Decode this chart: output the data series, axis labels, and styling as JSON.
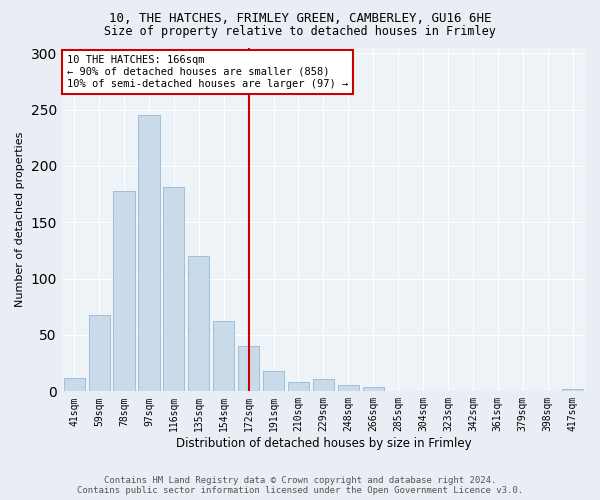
{
  "title_line1": "10, THE HATCHES, FRIMLEY GREEN, CAMBERLEY, GU16 6HE",
  "title_line2": "Size of property relative to detached houses in Frimley",
  "xlabel": "Distribution of detached houses by size in Frimley",
  "ylabel": "Number of detached properties",
  "categories": [
    "41sqm",
    "59sqm",
    "78sqm",
    "97sqm",
    "116sqm",
    "135sqm",
    "154sqm",
    "172sqm",
    "191sqm",
    "210sqm",
    "229sqm",
    "248sqm",
    "266sqm",
    "285sqm",
    "304sqm",
    "323sqm",
    "342sqm",
    "361sqm",
    "379sqm",
    "398sqm",
    "417sqm"
  ],
  "values": [
    12,
    68,
    178,
    245,
    181,
    120,
    62,
    40,
    18,
    8,
    11,
    6,
    4,
    0,
    0,
    0,
    0,
    0,
    0,
    0,
    2
  ],
  "bar_color": "#c9daea",
  "bar_edge_color": "#a0bfd4",
  "vline_x_index": 7,
  "vline_color": "#cc0000",
  "annotation_line1": "10 THE HATCHES: 166sqm",
  "annotation_line2": "← 90% of detached houses are smaller (858)",
  "annotation_line3": "10% of semi-detached houses are larger (97) →",
  "annotation_box_color": "#cc0000",
  "ylim": [
    0,
    305
  ],
  "yticks": [
    0,
    50,
    100,
    150,
    200,
    250,
    300
  ],
  "footer_line1": "Contains HM Land Registry data © Crown copyright and database right 2024.",
  "footer_line2": "Contains public sector information licensed under the Open Government Licence v3.0.",
  "bg_color": "#e8eef4",
  "plot_bg_color": "#eef3f8",
  "title_fontsize": 9,
  "subtitle_fontsize": 8.5,
  "ylabel_fontsize": 8,
  "xlabel_fontsize": 8.5,
  "tick_fontsize": 7,
  "footer_fontsize": 6.5,
  "annot_fontsize": 7.5
}
